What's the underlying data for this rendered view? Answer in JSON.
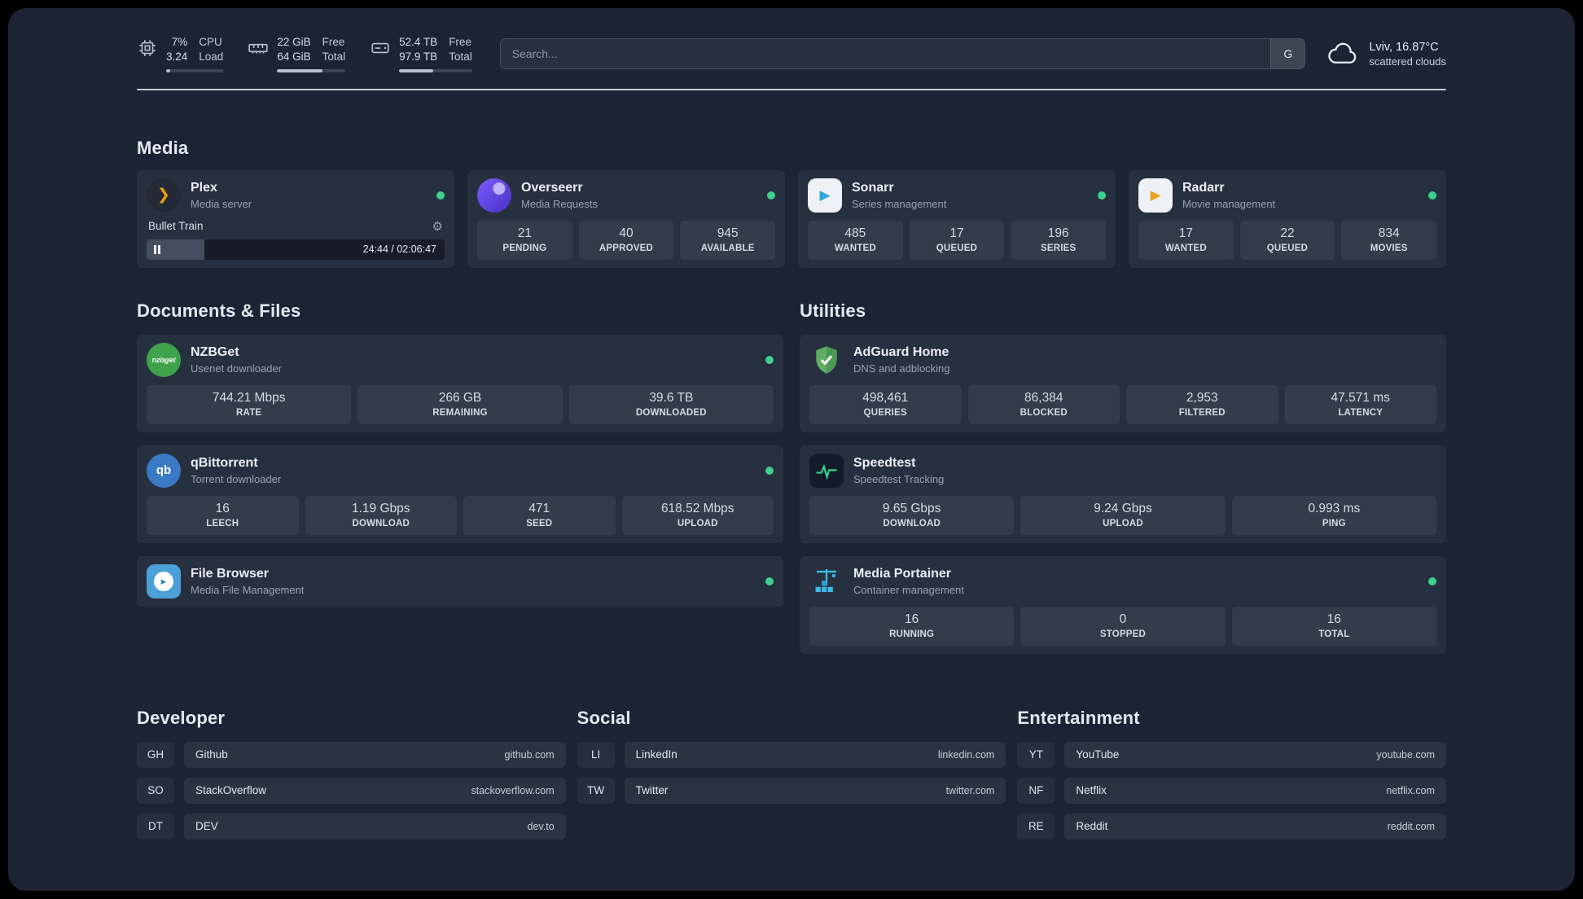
{
  "topbar": {
    "cpu": {
      "value1": "7%",
      "value2": "3.24",
      "label1": "CPU",
      "label2": "Load",
      "bar_percent": 7
    },
    "ram": {
      "value1": "22 GiB",
      "value2": "64 GiB",
      "label1": "Free",
      "label2": "Total",
      "bar_percent": 66
    },
    "disk": {
      "value1": "52.4 TB",
      "value2": "97.9 TB",
      "label1": "Free",
      "label2": "Total",
      "bar_percent": 47
    },
    "search": {
      "placeholder": "Search...",
      "button": "G"
    },
    "weather": {
      "location": "Lviv, 16.87°C",
      "condition": "scattered clouds"
    }
  },
  "sections": {
    "media": "Media",
    "documents": "Documents & Files",
    "utilities": "Utilities",
    "developer": "Developer",
    "social": "Social",
    "entertainment": "Entertainment"
  },
  "colors": {
    "status_ok": "#3fcf8e",
    "accent_plex": "#e5a00d"
  },
  "icons": {
    "plex_glyph": "❯",
    "sonarr_glyph": "▶",
    "radarr_glyph": "▶",
    "filebrowser_glyph": "▸",
    "gear_glyph": "⚙",
    "nzbget_text": "nzbget",
    "qb_text": "qb"
  },
  "plex": {
    "name": "Plex",
    "subtitle": "Media server",
    "now_playing": "Bullet Train",
    "time": "24:44 / 02:06:47",
    "progress_percent": 19.5
  },
  "overseerr": {
    "name": "Overseerr",
    "subtitle": "Media Requests",
    "stats": [
      {
        "value": "21",
        "label": "PENDING"
      },
      {
        "value": "40",
        "label": "APPROVED"
      },
      {
        "value": "945",
        "label": "AVAILABLE"
      }
    ]
  },
  "sonarr": {
    "name": "Sonarr",
    "subtitle": "Series management",
    "stats": [
      {
        "value": "485",
        "label": "WANTED"
      },
      {
        "value": "17",
        "label": "QUEUED"
      },
      {
        "value": "196",
        "label": "SERIES"
      }
    ]
  },
  "radarr": {
    "name": "Radarr",
    "subtitle": "Movie management",
    "stats": [
      {
        "value": "17",
        "label": "WANTED"
      },
      {
        "value": "22",
        "label": "QUEUED"
      },
      {
        "value": "834",
        "label": "MOVIES"
      }
    ]
  },
  "nzbget": {
    "name": "NZBGet",
    "subtitle": "Usenet downloader",
    "stats": [
      {
        "value": "744.21 Mbps",
        "label": "RATE"
      },
      {
        "value": "266 GB",
        "label": "REMAINING"
      },
      {
        "value": "39.6 TB",
        "label": "DOWNLOADED"
      }
    ]
  },
  "qbittorrent": {
    "name": "qBittorrent",
    "subtitle": "Torrent downloader",
    "stats": [
      {
        "value": "16",
        "label": "LEECH"
      },
      {
        "value": "1.19 Gbps",
        "label": "DOWNLOAD"
      },
      {
        "value": "471",
        "label": "SEED"
      },
      {
        "value": "618.52 Mbps",
        "label": "UPLOAD"
      }
    ]
  },
  "filebrowser": {
    "name": "File Browser",
    "subtitle": "Media File Management"
  },
  "adguard": {
    "name": "AdGuard Home",
    "subtitle": "DNS and adblocking",
    "stats": [
      {
        "value": "498,461",
        "label": "QUERIES"
      },
      {
        "value": "86,384",
        "label": "BLOCKED"
      },
      {
        "value": "2,953",
        "label": "FILTERED"
      },
      {
        "value": "47.571 ms",
        "label": "LATENCY"
      }
    ]
  },
  "speedtest": {
    "name": "Speedtest",
    "subtitle": "Speedtest Tracking",
    "stats": [
      {
        "value": "9.65 Gbps",
        "label": "DOWNLOAD"
      },
      {
        "value": "9.24 Gbps",
        "label": "UPLOAD"
      },
      {
        "value": "0.993 ms",
        "label": "PING"
      }
    ]
  },
  "portainer": {
    "name": "Media Portainer",
    "subtitle": "Container management",
    "stats": [
      {
        "value": "16",
        "label": "RUNNING"
      },
      {
        "value": "0",
        "label": "STOPPED"
      },
      {
        "value": "16",
        "label": "TOTAL"
      }
    ]
  },
  "bookmarks": {
    "developer": [
      {
        "abbr": "GH",
        "name": "Github",
        "url": "github.com"
      },
      {
        "abbr": "SO",
        "name": "StackOverflow",
        "url": "stackoverflow.com"
      },
      {
        "abbr": "DT",
        "name": "DEV",
        "url": "dev.to"
      }
    ],
    "social": [
      {
        "abbr": "LI",
        "name": "LinkedIn",
        "url": "linkedin.com"
      },
      {
        "abbr": "TW",
        "name": "Twitter",
        "url": "twitter.com"
      }
    ],
    "entertainment": [
      {
        "abbr": "YT",
        "name": "YouTube",
        "url": "youtube.com"
      },
      {
        "abbr": "NF",
        "name": "Netflix",
        "url": "netflix.com"
      },
      {
        "abbr": "RE",
        "name": "Reddit",
        "url": "reddit.com"
      }
    ]
  }
}
